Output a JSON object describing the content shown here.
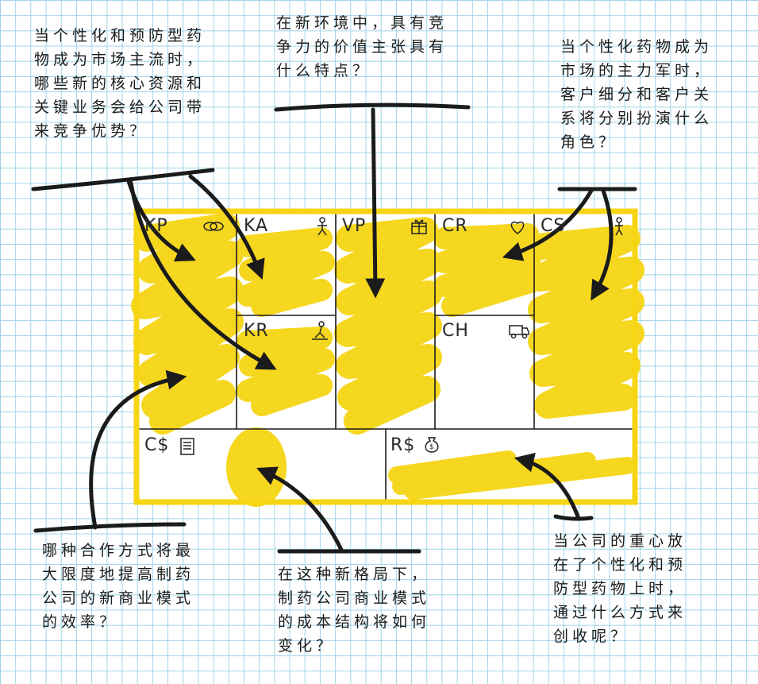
{
  "canvas": {
    "grid_color": "#9fd4ea",
    "frame_color": "#f6d514",
    "highlight_color": "#f6d514",
    "ink_color": "#1b1b1b"
  },
  "canvas_blocks": {
    "kp": {
      "label": "KP",
      "icon": "chain-link-icon"
    },
    "ka": {
      "label": "KA",
      "icon": "worker-icon"
    },
    "kr": {
      "label": "KR",
      "icon": "factory-worker-icon"
    },
    "vp": {
      "label": "VP",
      "icon": "gift-box-icon"
    },
    "cr": {
      "label": "CR",
      "icon": "heart-icon"
    },
    "ch": {
      "label": "CH",
      "icon": "delivery-truck-icon"
    },
    "cs": {
      "label": "CS",
      "icon": "person-icon"
    },
    "cost": {
      "label": "C$",
      "icon": "receipt-icon"
    },
    "rev": {
      "label": "R$",
      "icon": "money-bag-icon"
    }
  },
  "questions": {
    "kp_ka_kr": "当个性化和预防型药\n物成为市场主流时，\n哪些新的核心资源和\n关键业务会给公司带\n来竞争优势？",
    "vp": "在新环境中，具有竞\n争力的价值主张具有\n什么特点？",
    "cr_cs": "当个性化药物成为\n市场的主力军时，\n客户细分和客户关\n系将分别扮演什么\n角色？",
    "partners": "哪种合作方式将最\n大限度地提高制药\n公司的新商业模式\n的效率？",
    "cost": "在这种新格局下，\n制药公司商业模式\n的成本结构将如何\n变化？",
    "revenue": "当公司的重心放\n在了个性化和预\n防型药物上时，\n通过什么方式来\n创收呢？"
  }
}
